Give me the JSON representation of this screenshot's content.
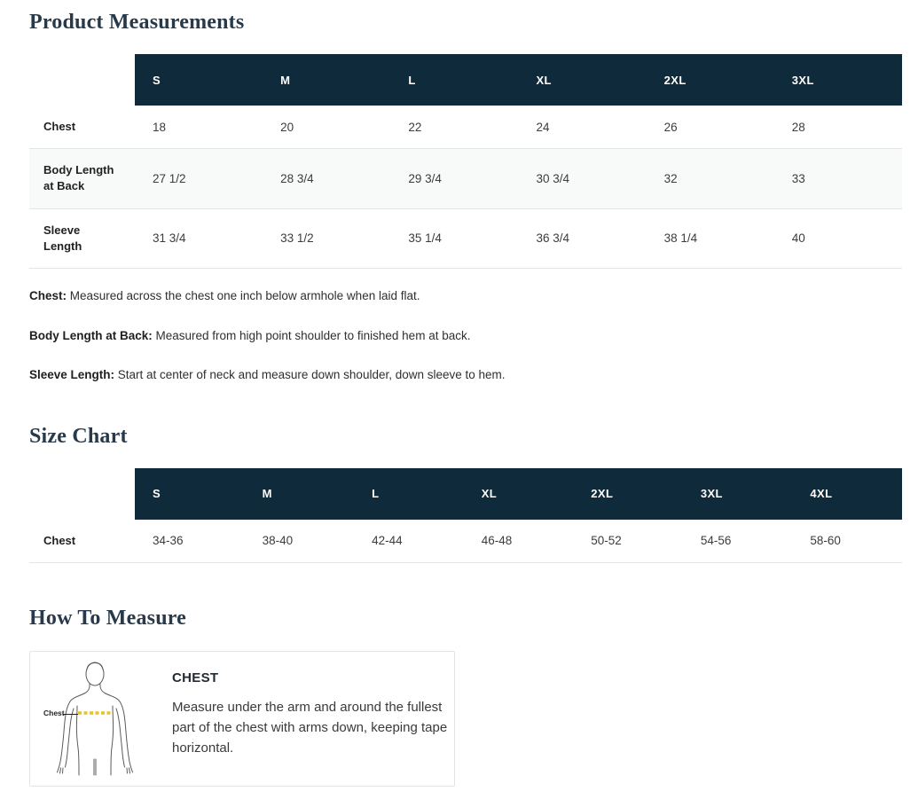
{
  "colors": {
    "header_navy": "#0f2a3a",
    "heading_text": "#28394a",
    "zebra_row": "#f8f9f9",
    "row_border": "#e2e4e5",
    "tape_yellow": "#e9c320",
    "figure_outline": "#5a5a5a"
  },
  "product_measurements": {
    "title": "Product Measurements",
    "columns": [
      "S",
      "M",
      "L",
      "XL",
      "2XL",
      "3XL"
    ],
    "rows": [
      {
        "label": "Chest",
        "values": [
          "18",
          "20",
          "22",
          "24",
          "26",
          "28"
        ]
      },
      {
        "label": "Body Length at Back",
        "values": [
          "27 1/2",
          "28 3/4",
          "29 3/4",
          "30 3/4",
          "32",
          "33"
        ]
      },
      {
        "label": "Sleeve Length",
        "values": [
          "31 3/4",
          "33 1/2",
          "35 1/4",
          "36 3/4",
          "38 1/4",
          "40"
        ]
      }
    ],
    "notes": [
      {
        "label": "Chest:",
        "text": "Measured across the chest one inch below armhole when laid flat."
      },
      {
        "label": "Body Length at Back:",
        "text": "Measured from high point shoulder to finished hem at back."
      },
      {
        "label": "Sleeve Length:",
        "text": "Start at center of neck and measure down shoulder, down sleeve to hem."
      }
    ]
  },
  "size_chart": {
    "title": "Size Chart",
    "columns": [
      "S",
      "M",
      "L",
      "XL",
      "2XL",
      "3XL",
      "4XL"
    ],
    "rows": [
      {
        "label": "Chest",
        "values": [
          "34-36",
          "38-40",
          "42-44",
          "46-48",
          "50-52",
          "54-56",
          "58-60"
        ]
      }
    ]
  },
  "how_to_measure": {
    "title": "How To Measure",
    "items": [
      {
        "heading": "CHEST",
        "figure_label": "Chest",
        "text": "Measure under the arm and around the fullest part of the chest with arms down, keeping tape horizontal."
      }
    ]
  }
}
